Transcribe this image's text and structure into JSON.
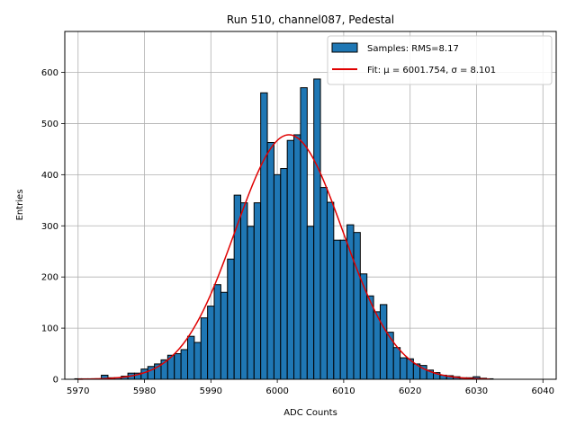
{
  "chart_data": {
    "type": "bar",
    "title": "Run 510, channel087, Pedestal",
    "xlabel": "ADC Counts",
    "ylabel": "Entries",
    "xlim": [
      5968,
      6042
    ],
    "ylim": [
      0,
      680
    ],
    "xticks": [
      5970,
      5980,
      5990,
      6000,
      6010,
      6020,
      6030,
      6040
    ],
    "yticks": [
      0,
      100,
      200,
      300,
      400,
      500,
      600
    ],
    "grid": true,
    "legend_position": "top-right",
    "bar_color": "#1f77b4",
    "fit_color": "#e00000",
    "bin_width": 1,
    "series": [
      {
        "name": "Samples: RMS=8.17",
        "x": [
          5970,
          5971,
          5972,
          5973,
          5974,
          5975,
          5976,
          5977,
          5978,
          5979,
          5980,
          5981,
          5982,
          5983,
          5984,
          5985,
          5986,
          5987,
          5988,
          5989,
          5990,
          5991,
          5992,
          5993,
          5994,
          5995,
          5996,
          5997,
          5998,
          5999,
          6000,
          6001,
          6002,
          6003,
          6004,
          6005,
          6006,
          6007,
          6008,
          6009,
          6010,
          6011,
          6012,
          6013,
          6014,
          6015,
          6016,
          6017,
          6018,
          6019,
          6020,
          6021,
          6022,
          6023,
          6024,
          6025,
          6026,
          6027,
          6028,
          6029,
          6030,
          6031,
          6032
        ],
        "values": [
          1,
          1,
          1,
          1,
          8,
          3,
          3,
          6,
          12,
          12,
          20,
          25,
          30,
          38,
          47,
          50,
          58,
          84,
          72,
          120,
          143,
          185,
          170,
          235,
          360,
          345,
          299,
          345,
          560,
          463,
          400,
          412,
          467,
          478,
          570,
          299,
          587,
          375,
          346,
          272,
          272,
          302,
          287,
          206,
          163,
          132,
          146,
          92,
          62,
          42,
          40,
          30,
          27,
          18,
          13,
          8,
          7,
          5,
          3,
          3,
          5,
          2,
          1
        ]
      },
      {
        "name": "Fit: μ = 6001.754, σ = 8.101",
        "type": "gaussian",
        "mu": 6001.754,
        "sigma": 8.101,
        "amplitude": 478,
        "x_range": [
          5970,
          6032
        ]
      }
    ]
  }
}
